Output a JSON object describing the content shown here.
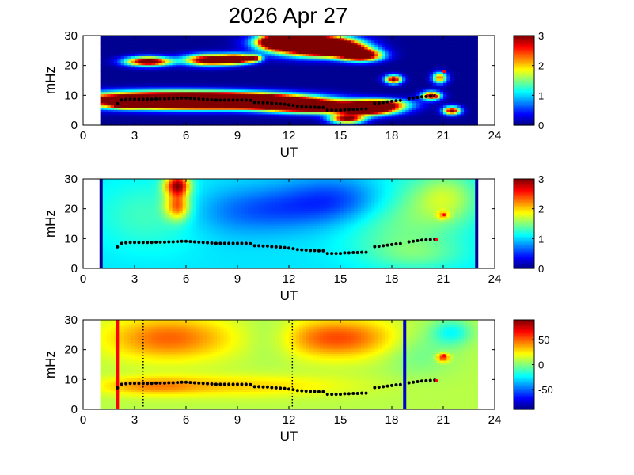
{
  "title": "2026 Apr 27",
  "chart_data": [
    {
      "type": "heatmap",
      "xlabel": "UT",
      "ylabel": "mHz",
      "xlim": [
        0,
        24
      ],
      "ylim": [
        0,
        30
      ],
      "xticks": [
        "0",
        "3",
        "6",
        "9",
        "12",
        "15",
        "18",
        "21",
        "24"
      ],
      "yticks": [
        "0",
        "10",
        "20",
        "30"
      ],
      "colorbar": {
        "min": 0,
        "max": 3,
        "ticks": [
          "0",
          "1",
          "2",
          "3"
        ]
      },
      "data_window": [
        1.0,
        23.0
      ],
      "background_level": 0.05,
      "blobs": [
        {
          "t": 5.1,
          "f": 8.5,
          "st": 3.6,
          "sf": 1.8,
          "v": 6
        },
        {
          "t": 9.5,
          "f": 8.2,
          "st": 2.8,
          "sf": 1.5,
          "v": 5
        },
        {
          "t": 13.2,
          "f": 6.2,
          "st": 1.8,
          "sf": 1.4,
          "v": 4
        },
        {
          "t": 16.5,
          "f": 5.3,
          "st": 1.2,
          "sf": 1.3,
          "v": 4
        },
        {
          "t": 2.5,
          "f": 7.2,
          "st": 0.5,
          "sf": 0.8,
          "v": 3
        },
        {
          "t": 17.2,
          "f": 7.2,
          "st": 1.2,
          "sf": 1.2,
          "v": 3
        },
        {
          "t": 15.4,
          "f": 2.2,
          "st": 0.7,
          "sf": 1.0,
          "v": 3
        },
        {
          "t": 12.8,
          "f": 27.5,
          "st": 1.5,
          "sf": 2.4,
          "v": 5
        },
        {
          "t": 14.6,
          "f": 26.0,
          "st": 1.2,
          "sf": 1.8,
          "v": 5
        },
        {
          "t": 16.2,
          "f": 23.5,
          "st": 0.8,
          "sf": 1.3,
          "v": 4
        },
        {
          "t": 11.2,
          "f": 28.0,
          "st": 0.7,
          "sf": 1.5,
          "v": 3
        },
        {
          "t": 3.8,
          "f": 21.5,
          "st": 0.9,
          "sf": 1.1,
          "v": 3.6
        },
        {
          "t": 7.4,
          "f": 22.0,
          "st": 1.0,
          "sf": 1.3,
          "v": 3.6
        },
        {
          "t": 9.0,
          "f": 22.3,
          "st": 0.6,
          "sf": 1.1,
          "v": 3.2
        },
        {
          "t": 18.1,
          "f": 15.5,
          "st": 0.35,
          "sf": 1.0,
          "v": 3
        },
        {
          "t": 20.3,
          "f": 10.0,
          "st": 0.4,
          "sf": 1.0,
          "v": 3
        },
        {
          "t": 21.5,
          "f": 5.0,
          "st": 0.35,
          "sf": 1.0,
          "v": 3
        },
        {
          "t": 20.8,
          "f": 16.0,
          "st": 0.3,
          "sf": 1.3,
          "v": 2.3
        },
        {
          "t": 10.0,
          "f": 22.5,
          "st": 0.3,
          "sf": 0.8,
          "v": 2.4
        }
      ],
      "series": [
        {
          "marker": "black-dots",
          "x": [
            2,
            2.25,
            2.5,
            2.75,
            3,
            3.25,
            3.5,
            3.75,
            4,
            4.25,
            4.5,
            4.75,
            5,
            5.25,
            5.5,
            5.75,
            6,
            6.25,
            6.5,
            6.75,
            7,
            7.25,
            7.5,
            7.75,
            8,
            8.25,
            8.5,
            8.75,
            9,
            9.25,
            9.5,
            9.75,
            10,
            10.25,
            10.5,
            10.75,
            11,
            11.25,
            11.5,
            11.75,
            12,
            12.25,
            12.5,
            12.75,
            13,
            13.25,
            13.5,
            13.75,
            14,
            14.25,
            14.5,
            14.75,
            15,
            15.25,
            15.5,
            15.75,
            16,
            16.25,
            16.5,
            17,
            17.25,
            17.5,
            17.75,
            18,
            18.25,
            18.5,
            19,
            19.25,
            19.5,
            19.75,
            20,
            20.25,
            20.5
          ],
          "y": [
            7.2,
            8.4,
            8.6,
            8.7,
            8.7,
            8.7,
            8.7,
            8.7,
            8.7,
            8.8,
            8.8,
            8.8,
            8.9,
            8.9,
            9.0,
            9.1,
            9.1,
            9.0,
            8.9,
            8.8,
            8.7,
            8.6,
            8.5,
            8.4,
            8.4,
            8.4,
            8.4,
            8.4,
            8.4,
            8.4,
            8.4,
            8.3,
            7.6,
            7.6,
            7.5,
            7.5,
            7.3,
            7.2,
            7.1,
            7.0,
            6.8,
            6.6,
            6.3,
            6.2,
            6.1,
            6.0,
            6.0,
            5.9,
            5.9,
            5.0,
            5.0,
            5.0,
            5.0,
            5.2,
            5.2,
            5.3,
            5.3,
            5.4,
            5.4,
            7.3,
            7.4,
            7.6,
            7.8,
            8.0,
            8.2,
            8.3,
            8.9,
            9.1,
            9.3,
            9.5,
            9.6,
            9.7,
            9.8
          ]
        },
        {
          "marker": "red-dots",
          "x": [
            20.6,
            21.05
          ],
          "y": [
            9.6,
            18.0
          ]
        }
      ],
      "markers": []
    },
    {
      "type": "heatmap",
      "xlabel": "UT",
      "ylabel": "mHz",
      "xlim": [
        0,
        24
      ],
      "ylim": [
        0,
        30
      ],
      "xticks": [
        "0",
        "3",
        "6",
        "9",
        "12",
        "15",
        "18",
        "21",
        "24"
      ],
      "yticks": [
        "0",
        "10",
        "20",
        "30"
      ],
      "colorbar": {
        "min": 0,
        "max": 3,
        "ticks": [
          "0",
          "1",
          "2",
          "3"
        ]
      },
      "data_window": [
        1.0,
        23.0
      ],
      "background_level": 1.05,
      "blobs": [
        {
          "t": 5.5,
          "f": 28.0,
          "st": 0.5,
          "sf": 2.5,
          "v": 1.8
        },
        {
          "t": 5.5,
          "f": 21.0,
          "st": 0.5,
          "sf": 3.2,
          "v": 1.2
        },
        {
          "t": 4.0,
          "f": 18.0,
          "st": 2.2,
          "sf": 8.0,
          "v": 0.3
        },
        {
          "t": 18.5,
          "f": 18.0,
          "st": 2.5,
          "sf": 9.0,
          "v": 0.45
        },
        {
          "t": 21.2,
          "f": 24.0,
          "st": 1.3,
          "sf": 6.0,
          "v": 0.5
        },
        {
          "t": 15.0,
          "f": 23.0,
          "st": 2.2,
          "sf": 5.5,
          "v": -0.55
        },
        {
          "t": 11.0,
          "f": 20.0,
          "st": 2.5,
          "sf": 5.0,
          "v": -0.35
        },
        {
          "t": 8.0,
          "f": 18.0,
          "st": 2.5,
          "sf": 6.0,
          "v": -0.15
        },
        {
          "t": 19.5,
          "f": 5.0,
          "st": 2.0,
          "sf": 4.0,
          "v": 0.3
        },
        {
          "t": 21.0,
          "f": 18.0,
          "st": 0.25,
          "sf": 1.0,
          "v": 0.6
        }
      ],
      "series": [
        {
          "marker": "black-dots",
          "x": [
            2,
            2.25,
            2.5,
            2.75,
            3,
            3.25,
            3.5,
            3.75,
            4,
            4.25,
            4.5,
            4.75,
            5,
            5.25,
            5.5,
            5.75,
            6,
            6.25,
            6.5,
            6.75,
            7,
            7.25,
            7.5,
            7.75,
            8,
            8.25,
            8.5,
            8.75,
            9,
            9.25,
            9.5,
            9.75,
            10,
            10.25,
            10.5,
            10.75,
            11,
            11.25,
            11.5,
            11.75,
            12,
            12.25,
            12.5,
            12.75,
            13,
            13.25,
            13.5,
            13.75,
            14,
            14.25,
            14.5,
            14.75,
            15,
            15.25,
            15.5,
            15.75,
            16,
            16.25,
            16.5,
            17,
            17.25,
            17.5,
            17.75,
            18,
            18.25,
            18.5,
            19,
            19.25,
            19.5,
            19.75,
            20,
            20.25,
            20.5
          ],
          "y": [
            7.2,
            8.4,
            8.6,
            8.7,
            8.7,
            8.7,
            8.7,
            8.7,
            8.7,
            8.8,
            8.8,
            8.8,
            8.9,
            8.9,
            9.0,
            9.1,
            9.1,
            9.0,
            8.9,
            8.8,
            8.7,
            8.6,
            8.5,
            8.4,
            8.4,
            8.4,
            8.4,
            8.4,
            8.4,
            8.4,
            8.4,
            8.3,
            7.6,
            7.6,
            7.5,
            7.5,
            7.3,
            7.2,
            7.1,
            7.0,
            6.8,
            6.6,
            6.3,
            6.2,
            6.1,
            6.0,
            6.0,
            5.9,
            5.9,
            5.0,
            5.0,
            5.0,
            5.0,
            5.2,
            5.2,
            5.3,
            5.3,
            5.4,
            5.4,
            7.3,
            7.4,
            7.6,
            7.8,
            8.0,
            8.2,
            8.3,
            8.9,
            9.1,
            9.3,
            9.5,
            9.6,
            9.7,
            9.8
          ]
        },
        {
          "marker": "red-dots",
          "x": [
            20.6,
            21.05
          ],
          "y": [
            9.6,
            18.0
          ]
        }
      ],
      "markers": [
        {
          "style": "solid",
          "color": "#00008f",
          "x": 1.05
        },
        {
          "style": "solid",
          "color": "#00008f",
          "x": 22.95
        }
      ]
    },
    {
      "type": "heatmap",
      "xlabel": "UT",
      "ylabel": "mHz",
      "xlim": [
        0,
        24
      ],
      "ylim": [
        0,
        30
      ],
      "xticks": [
        "0",
        "3",
        "6",
        "9",
        "12",
        "15",
        "18",
        "21",
        "24"
      ],
      "yticks": [
        "0",
        "10",
        "20",
        "30"
      ],
      "colorbar": {
        "min": -90,
        "max": 90,
        "ticks": [
          "50",
          "0",
          "-50"
        ],
        "tick_values": [
          50,
          0,
          -50
        ]
      },
      "data_window": [
        1.0,
        23.0
      ],
      "background_level": 10,
      "blobs": [
        {
          "t": 5.0,
          "f": 24.0,
          "st": 2.5,
          "sf": 5.0,
          "v": 40
        },
        {
          "t": 14.8,
          "f": 24.0,
          "st": 2.5,
          "sf": 4.5,
          "v": 45
        },
        {
          "t": 9.0,
          "f": 8.0,
          "st": 4.5,
          "sf": 2.5,
          "v": 20
        },
        {
          "t": 4.0,
          "f": 8.0,
          "st": 2.0,
          "sf": 2.0,
          "v": 25
        },
        {
          "t": 11.0,
          "f": 24.0,
          "st": 1.2,
          "sf": 5.0,
          "v": -15
        },
        {
          "t": 19.5,
          "f": 20.0,
          "st": 1.5,
          "sf": 6.0,
          "v": -15
        },
        {
          "t": 21.5,
          "f": 26.0,
          "st": 0.8,
          "sf": 3.0,
          "v": -30
        },
        {
          "t": 21.0,
          "f": 17.5,
          "st": 0.25,
          "sf": 1.0,
          "v": 60
        }
      ],
      "series": [
        {
          "marker": "black-dots",
          "x": [
            2,
            2.25,
            2.5,
            2.75,
            3,
            3.25,
            3.5,
            3.75,
            4,
            4.25,
            4.5,
            4.75,
            5,
            5.25,
            5.5,
            5.75,
            6,
            6.25,
            6.5,
            6.75,
            7,
            7.25,
            7.5,
            7.75,
            8,
            8.25,
            8.5,
            8.75,
            9,
            9.25,
            9.5,
            9.75,
            10,
            10.25,
            10.5,
            10.75,
            11,
            11.25,
            11.5,
            11.75,
            12,
            12.25,
            12.5,
            12.75,
            13,
            13.25,
            13.5,
            13.75,
            14,
            14.25,
            14.5,
            14.75,
            15,
            15.25,
            15.5,
            15.75,
            16,
            16.25,
            16.5,
            17,
            17.25,
            17.5,
            17.75,
            18,
            18.25,
            18.5,
            19,
            19.25,
            19.5,
            19.75,
            20,
            20.25,
            20.5
          ],
          "y": [
            7.2,
            8.4,
            8.6,
            8.7,
            8.7,
            8.7,
            8.7,
            8.7,
            8.7,
            8.8,
            8.8,
            8.8,
            8.9,
            8.9,
            9.0,
            9.1,
            9.1,
            9.0,
            8.9,
            8.8,
            8.7,
            8.6,
            8.5,
            8.4,
            8.4,
            8.4,
            8.4,
            8.4,
            8.4,
            8.4,
            8.4,
            8.3,
            7.6,
            7.6,
            7.5,
            7.5,
            7.3,
            7.2,
            7.1,
            7.0,
            6.8,
            6.6,
            6.3,
            6.2,
            6.1,
            6.0,
            6.0,
            5.9,
            5.9,
            5.0,
            5.0,
            5.0,
            5.0,
            5.2,
            5.2,
            5.3,
            5.3,
            5.4,
            5.4,
            7.3,
            7.4,
            7.6,
            7.8,
            8.0,
            8.2,
            8.3,
            8.9,
            9.1,
            9.3,
            9.5,
            9.6,
            9.7,
            9.8
          ]
        },
        {
          "marker": "red-dots",
          "x": [
            20.6,
            21.05
          ],
          "y": [
            9.6,
            18.0
          ]
        }
      ],
      "markers": [
        {
          "style": "solid",
          "color": "#ff0000",
          "x": 2.0
        },
        {
          "style": "solid",
          "color": "#0000cc",
          "x": 18.75
        },
        {
          "style": "dotted",
          "color": "#000000",
          "x": 3.5
        },
        {
          "style": "dotted",
          "color": "#000000",
          "x": 12.2
        }
      ]
    }
  ]
}
